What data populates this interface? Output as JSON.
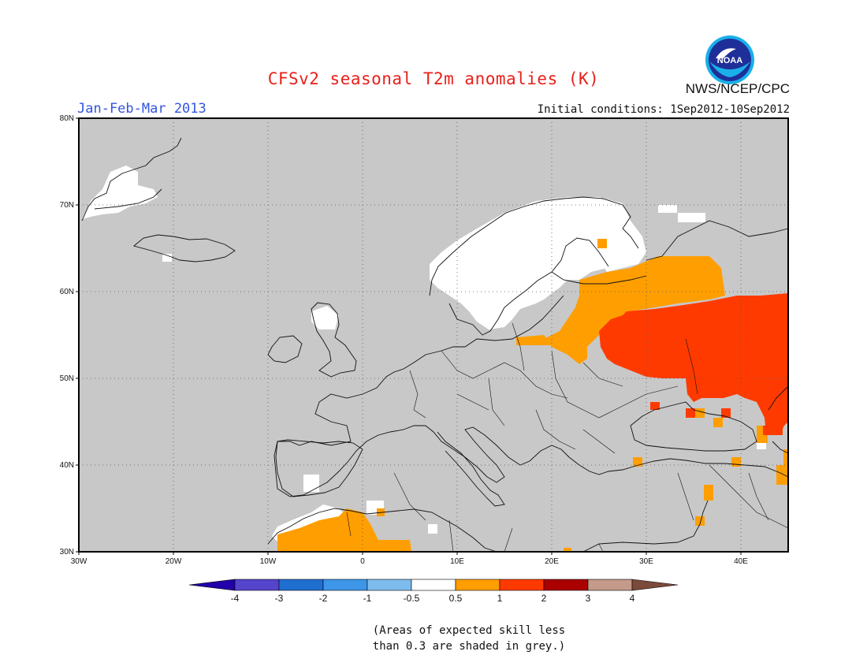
{
  "header": {
    "title": "CFSv2 seasonal T2m anomalies (K)",
    "agency": "NWS/NCEP/CPC",
    "period": "Jan-Feb-Mar 2013",
    "initial_conditions": "Initial conditions: 1Sep2012-10Sep2012",
    "logo_text": "NOAA"
  },
  "map": {
    "background_color": "#c8c8c8",
    "lat_range": [
      30,
      80
    ],
    "lon_range": [
      -30,
      45
    ],
    "lat_ticks": [
      "30N",
      "40N",
      "50N",
      "60N",
      "70N",
      "80N"
    ],
    "lon_ticks": [
      "30W",
      "20W",
      "10W",
      "0",
      "10E",
      "20E",
      "30E",
      "40E"
    ],
    "grid": true
  },
  "legend": {
    "ticks": [
      "-4",
      "-3",
      "-2",
      "-1",
      "-0.5",
      "0.5",
      "1",
      "2",
      "3",
      "4"
    ],
    "colors": [
      "#2200aa",
      "#5544cc",
      "#1f6fd0",
      "#3d96e8",
      "#7fbcee",
      "#ffffff",
      "#ff9e00",
      "#ff3a00",
      "#aa0000",
      "#c49a8a",
      "#7a4a3a"
    ]
  },
  "note": {
    "line1": "(Areas of expected skill less",
    "line2": "than 0.3 are shaded in grey.)"
  }
}
